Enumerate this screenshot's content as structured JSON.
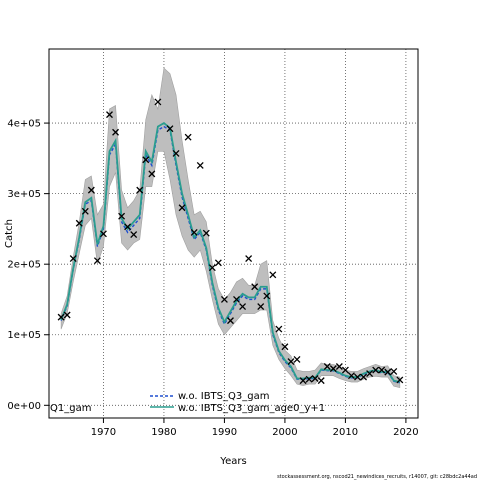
{
  "chart_data": {
    "type": "line",
    "title": "",
    "xlabel": "Years",
    "ylabel": "Catch",
    "xlim": [
      1961,
      2022
    ],
    "ylim": [
      -18000,
      505000
    ],
    "xticks": [
      1970,
      1980,
      1990,
      2000,
      2010,
      2020
    ],
    "xtick_labels": [
      "1970",
      "1980",
      "1990",
      "2000",
      "2010",
      "2020"
    ],
    "yticks": [
      0,
      100000,
      200000,
      300000,
      400000
    ],
    "ytick_labels": [
      "0e+00",
      "1e+05",
      "2e+05",
      "3e+05",
      "4e+05"
    ],
    "grid": true,
    "grid_style": "dotted",
    "legend_position": "bottom-center",
    "clipped_legend_text": "Q1_gam",
    "colors": {
      "band": "#bebebe",
      "series_1": "#1f4fcf",
      "series_2": "#2a9d8f",
      "observed": "#000000"
    },
    "x": [
      1963,
      1964,
      1965,
      1966,
      1967,
      1968,
      1969,
      1970,
      1971,
      1972,
      1973,
      1974,
      1975,
      1976,
      1977,
      1978,
      1979,
      1980,
      1981,
      1982,
      1983,
      1984,
      1985,
      1986,
      1987,
      1988,
      1989,
      1990,
      1991,
      1992,
      1993,
      1994,
      1995,
      1996,
      1997,
      1998,
      1999,
      2000,
      2001,
      2002,
      2003,
      2004,
      2005,
      2006,
      2007,
      2008,
      2009,
      2010,
      2011,
      2012,
      2013,
      2014,
      2015,
      2016,
      2017,
      2018,
      2019
    ],
    "band": {
      "name": "",
      "lower": [
        108000,
        130000,
        175000,
        215000,
        255000,
        265000,
        200000,
        225000,
        310000,
        330000,
        230000,
        220000,
        230000,
        235000,
        310000,
        310000,
        360000,
        360000,
        320000,
        270000,
        240000,
        220000,
        210000,
        220000,
        190000,
        150000,
        115000,
        100000,
        110000,
        120000,
        130000,
        130000,
        130000,
        135000,
        135000,
        85000,
        65000,
        52000,
        42000,
        30000,
        28000,
        30000,
        30000,
        42000,
        42000,
        42000,
        38000,
        35000,
        33000,
        33000,
        37000,
        40000,
        41000,
        40000,
        40000,
        27000,
        25000
      ],
      "upper": [
        130000,
        155000,
        210000,
        260000,
        320000,
        325000,
        270000,
        285000,
        420000,
        425000,
        305000,
        280000,
        290000,
        305000,
        405000,
        440000,
        420000,
        478000,
        470000,
        440000,
        375000,
        320000,
        270000,
        275000,
        260000,
        200000,
        165000,
        150000,
        160000,
        175000,
        180000,
        170000,
        170000,
        200000,
        205000,
        120000,
        95000,
        78000,
        70000,
        50000,
        48000,
        48000,
        50000,
        60000,
        58000,
        58000,
        55000,
        50000,
        48000,
        48000,
        52000,
        55000,
        58000,
        55000,
        56000,
        42000,
        40000
      ]
    },
    "series": [
      {
        "name": "w.o. IBTS_Q3_gam",
        "line_style": "dashed",
        "values": [
          120000,
          141000,
          192000,
          235000,
          285000,
          290000,
          225000,
          250000,
          355000,
          370000,
          260000,
          245000,
          255000,
          265000,
          355000,
          340000,
          390000,
          395000,
          390000,
          340000,
          295000,
          265000,
          235000,
          245000,
          220000,
          170000,
          135000,
          115000,
          130000,
          145000,
          155000,
          150000,
          150000,
          165000,
          165000,
          100000,
          75000,
          62000,
          53000,
          37000,
          37000,
          38000,
          38000,
          50000,
          49000,
          49000,
          45000,
          41000,
          39000,
          39000,
          44000,
          47000,
          49000,
          46000,
          47000,
          34000,
          32000
        ]
      },
      {
        "name": "w.o. IBTS_Q3_gam_age0_y+1",
        "line_style": "solid",
        "values": [
          121000,
          143000,
          194000,
          238000,
          288000,
          294000,
          228000,
          254000,
          360000,
          375000,
          265000,
          250000,
          260000,
          270000,
          360000,
          345000,
          395000,
          400000,
          393000,
          345000,
          300000,
          270000,
          238000,
          248000,
          223000,
          174000,
          138000,
          118000,
          133000,
          148000,
          158000,
          153000,
          153000,
          168000,
          168000,
          103000,
          77000,
          64000,
          55000,
          38000,
          38000,
          39000,
          39000,
          51000,
          50000,
          50000,
          46000,
          42000,
          40000,
          40000,
          45000,
          48000,
          50000,
          47000,
          48000,
          35000,
          33000
        ]
      }
    ],
    "observed": {
      "name": "",
      "x": [
        1963,
        1964,
        1965,
        1966,
        1967,
        1968,
        1969,
        1970,
        1971,
        1972,
        1973,
        1974,
        1975,
        1976,
        1977,
        1978,
        1979,
        1981,
        1982,
        1983,
        1984,
        1985,
        1986,
        1987,
        1988,
        1989,
        1990,
        1991,
        1992,
        1993,
        1994,
        1995,
        1996,
        1997,
        1998,
        1999,
        2000,
        2001,
        2002,
        2003,
        2004,
        2005,
        2006,
        2007,
        2008,
        2009,
        2010,
        2011,
        2012,
        2013,
        2014,
        2015,
        2016,
        2017,
        2018,
        2019
      ],
      "y": [
        125000,
        128000,
        208000,
        258000,
        275000,
        305000,
        205000,
        243000,
        412000,
        387000,
        268000,
        253000,
        242000,
        305000,
        348000,
        328000,
        430000,
        392000,
        357000,
        280000,
        380000,
        245000,
        340000,
        244000,
        195000,
        202000,
        150000,
        120000,
        150000,
        140000,
        208000,
        168000,
        140000,
        155000,
        185000,
        108000,
        83000,
        62000,
        65000,
        35000,
        37000,
        38000,
        35000,
        55000,
        52000,
        55000,
        50000,
        42000,
        40000,
        40000,
        45000,
        50000,
        50000,
        47000,
        48000,
        36000
      ]
    }
  },
  "footer": {
    "note": "stockassessment.org, nscod21_newindices_recruits, r14007, git: c28bdc2a44ad"
  }
}
